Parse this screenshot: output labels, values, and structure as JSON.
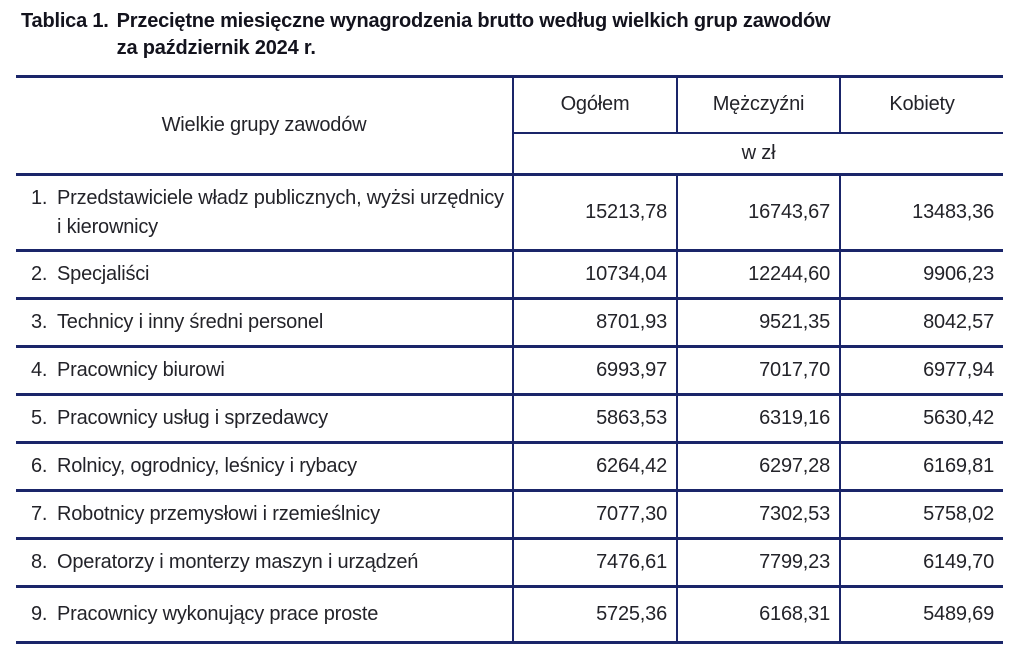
{
  "title": {
    "label": "Tablica 1.",
    "line1": "Przeciętne miesięczne wynagrodzenia brutto według wielkich grup zawodów",
    "line2": "za październik 2024 r."
  },
  "table": {
    "group_column_header": "Wielkie grupy zawodów",
    "columns": [
      "Ogółem",
      "Mężczyźni",
      "Kobiety"
    ],
    "unit_header": "w zł",
    "rows": [
      {
        "num": "1.",
        "name": "Przedstawiciele władz publicznych, wyżsi urzędnicy i kierownicy",
        "values": [
          "15213,78",
          "16743,67",
          "13483,36"
        ]
      },
      {
        "num": "2.",
        "name": "Specjaliści",
        "values": [
          "10734,04",
          "12244,60",
          "9906,23"
        ]
      },
      {
        "num": "3.",
        "name": "Technicy i inny średni personel",
        "values": [
          "8701,93",
          "9521,35",
          "8042,57"
        ]
      },
      {
        "num": "4.",
        "name": "Pracownicy biurowi",
        "values": [
          "6993,97",
          "7017,70",
          "6977,94"
        ]
      },
      {
        "num": "5.",
        "name": "Pracownicy usług i sprzedawcy",
        "values": [
          "5863,53",
          "6319,16",
          "5630,42"
        ]
      },
      {
        "num": "6.",
        "name": "Rolnicy, ogrodnicy, leśnicy i rybacy",
        "values": [
          "6264,42",
          "6297,28",
          "6169,81"
        ]
      },
      {
        "num": "7.",
        "name": "Robotnicy przemysłowi i rzemieślnicy",
        "values": [
          "7077,30",
          "7302,53",
          "5758,02"
        ]
      },
      {
        "num": "8.",
        "name": "Operatorzy i monterzy maszyn i urządzeń",
        "values": [
          "7476,61",
          "7799,23",
          "6149,70"
        ]
      },
      {
        "num": "9.",
        "name": "Pracownicy wykonujący prace proste",
        "values": [
          "5725,36",
          "6168,31",
          "5489,69"
        ]
      }
    ]
  },
  "colors": {
    "border": "#1a2569",
    "text": "#232329",
    "title": "#13131d"
  }
}
